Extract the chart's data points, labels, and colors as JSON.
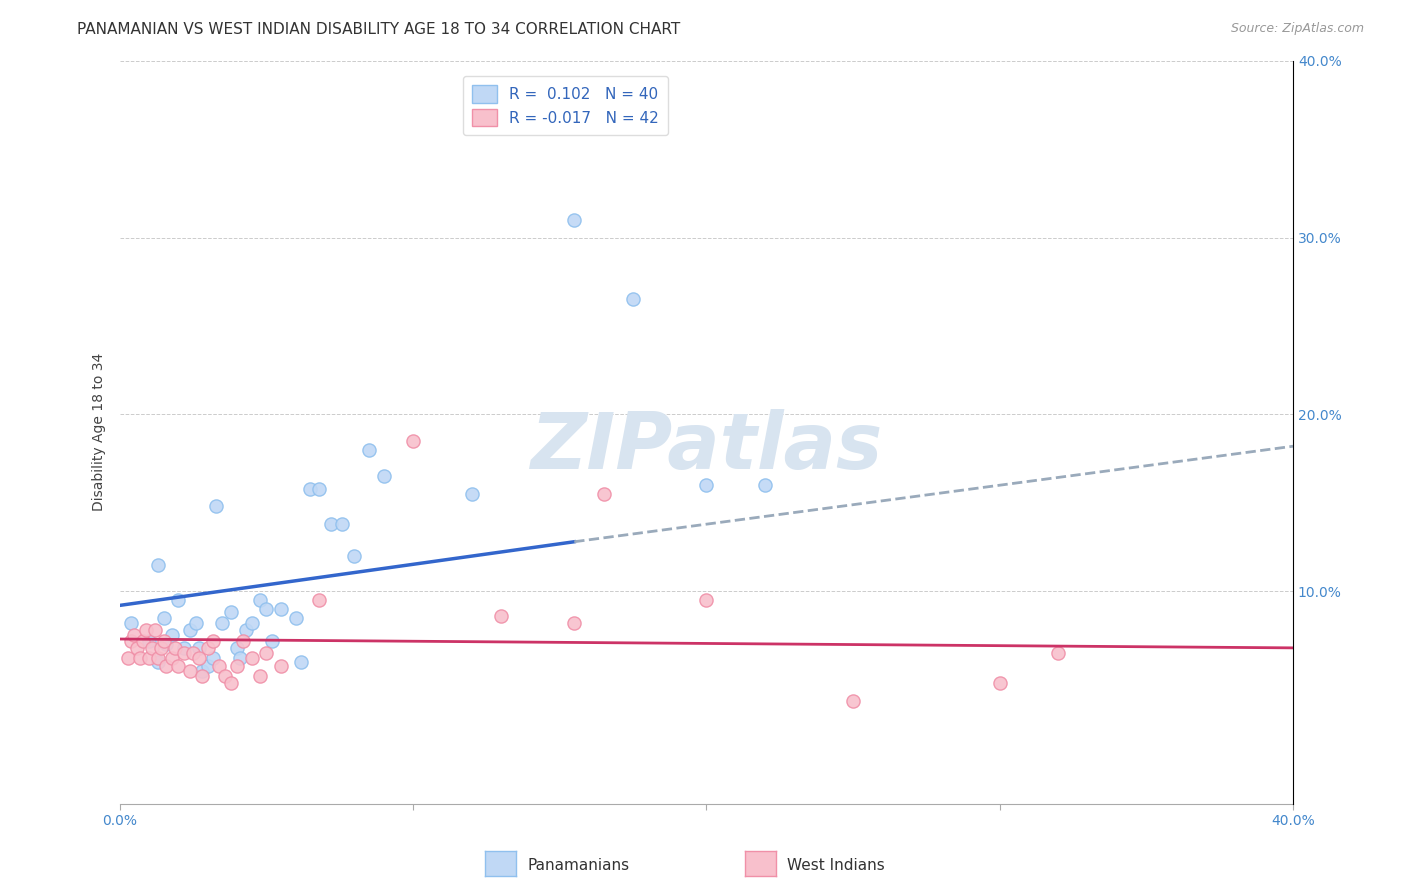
{
  "title": "PANAMANIAN VS WEST INDIAN DISABILITY AGE 18 TO 34 CORRELATION CHART",
  "source": "Source: ZipAtlas.com",
  "ylabel": "Disability Age 18 to 34",
  "xlim": [
    0.0,
    0.4
  ],
  "ylim": [
    -0.02,
    0.4
  ],
  "xticks": [
    0.0,
    0.1,
    0.2,
    0.3,
    0.4
  ],
  "yticks": [
    0.0,
    0.1,
    0.2,
    0.3,
    0.4
  ],
  "blue_edge_color": "#90c0ee",
  "blue_fill_color": "#c0d8f5",
  "pink_edge_color": "#f090a8",
  "pink_fill_color": "#f8c0cc",
  "blue_line_color": "#3366cc",
  "pink_line_color": "#cc3366",
  "dash_line_color": "#9aaabb",
  "watermark_color": "#d8e4f0",
  "blue_r": 0.102,
  "blue_n": 40,
  "pink_r": -0.017,
  "pink_n": 42,
  "blue_points_x": [
    0.004,
    0.01,
    0.013,
    0.013,
    0.015,
    0.016,
    0.018,
    0.02,
    0.022,
    0.024,
    0.026,
    0.027,
    0.028,
    0.03,
    0.032,
    0.033,
    0.035,
    0.038,
    0.04,
    0.041,
    0.043,
    0.045,
    0.048,
    0.05,
    0.052,
    0.055,
    0.06,
    0.062,
    0.065,
    0.068,
    0.072,
    0.076,
    0.08,
    0.085,
    0.09,
    0.12,
    0.155,
    0.175,
    0.2,
    0.22
  ],
  "blue_points_y": [
    0.082,
    0.072,
    0.06,
    0.115,
    0.085,
    0.07,
    0.075,
    0.095,
    0.068,
    0.078,
    0.082,
    0.068,
    0.055,
    0.058,
    0.062,
    0.148,
    0.082,
    0.088,
    0.068,
    0.062,
    0.078,
    0.082,
    0.095,
    0.09,
    0.072,
    0.09,
    0.085,
    0.06,
    0.158,
    0.158,
    0.138,
    0.138,
    0.12,
    0.18,
    0.165,
    0.155,
    0.31,
    0.265,
    0.16,
    0.16
  ],
  "pink_points_x": [
    0.003,
    0.004,
    0.005,
    0.006,
    0.007,
    0.008,
    0.009,
    0.01,
    0.011,
    0.012,
    0.013,
    0.014,
    0.015,
    0.016,
    0.018,
    0.019,
    0.02,
    0.022,
    0.024,
    0.025,
    0.027,
    0.028,
    0.03,
    0.032,
    0.034,
    0.036,
    0.038,
    0.04,
    0.042,
    0.045,
    0.048,
    0.05,
    0.055,
    0.068,
    0.1,
    0.13,
    0.155,
    0.165,
    0.2,
    0.25,
    0.3,
    0.32
  ],
  "pink_points_y": [
    0.062,
    0.072,
    0.075,
    0.068,
    0.062,
    0.072,
    0.078,
    0.062,
    0.068,
    0.078,
    0.062,
    0.068,
    0.072,
    0.058,
    0.062,
    0.068,
    0.058,
    0.065,
    0.055,
    0.065,
    0.062,
    0.052,
    0.068,
    0.072,
    0.058,
    0.052,
    0.048,
    0.058,
    0.072,
    0.062,
    0.052,
    0.065,
    0.058,
    0.095,
    0.185,
    0.086,
    0.082,
    0.155,
    0.095,
    0.038,
    0.048,
    0.065
  ],
  "blue_trend_x": [
    0.0,
    0.155
  ],
  "blue_trend_y": [
    0.092,
    0.128
  ],
  "dash_trend_x": [
    0.155,
    0.4
  ],
  "dash_trend_y": [
    0.128,
    0.182
  ],
  "pink_trend_x": [
    0.0,
    0.4
  ],
  "pink_trend_y": [
    0.073,
    0.068
  ],
  "bottom_labels": [
    "Panamanians",
    "West Indians"
  ],
  "background_color": "#ffffff",
  "grid_color": "#cccccc",
  "title_fontsize": 11,
  "axis_label_fontsize": 10,
  "tick_fontsize": 10,
  "legend_fontsize": 11,
  "marker_size": 90
}
